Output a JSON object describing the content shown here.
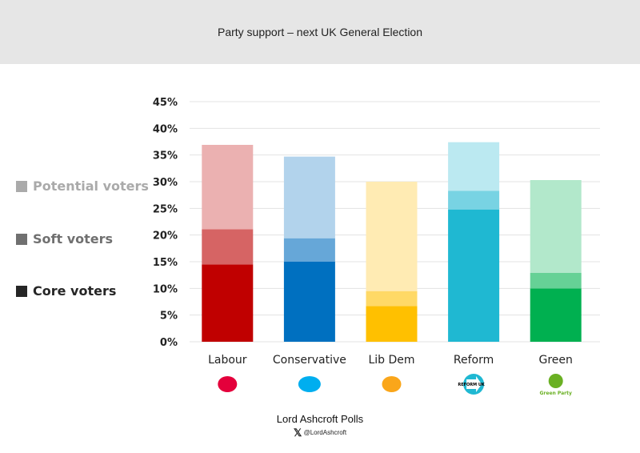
{
  "chart_data": {
    "type": "bar",
    "stacked": true,
    "title": "Party support – next UK General Election",
    "categories": [
      "Labour",
      "Conservative",
      "Lib Dem",
      "Reform",
      "Green"
    ],
    "series": [
      {
        "name": "Core voters",
        "values": [
          14.5,
          15.0,
          6.7,
          24.8,
          10.0
        ]
      },
      {
        "name": "Soft voters",
        "values": [
          6.6,
          4.4,
          2.8,
          3.5,
          2.9
        ]
      },
      {
        "name": "Potential voters",
        "values": [
          15.8,
          15.3,
          20.5,
          9.1,
          17.4
        ]
      }
    ],
    "cumulative_totals": {
      "core": [
        14.5,
        15.0,
        6.7,
        24.8,
        10.0
      ],
      "soft": [
        21.1,
        19.4,
        9.5,
        28.3,
        12.9
      ],
      "potential": [
        36.9,
        34.7,
        30.0,
        37.4,
        30.3
      ]
    },
    "ylim": [
      0,
      45
    ],
    "yticks": [
      "0%",
      "5%",
      "10%",
      "15%",
      "20%",
      "25%",
      "30%",
      "35%",
      "40%",
      "45%"
    ],
    "grid": true,
    "legend_placement": "left",
    "colors": {
      "Labour": [
        "#c00000",
        "#d66464",
        "#ebb1b1"
      ],
      "Conservative": [
        "#0070c0",
        "#66a7d8",
        "#b2d3ec"
      ],
      "Lib Dem": [
        "#ffc000",
        "#ffd966",
        "#ffebb3"
      ],
      "Reform": [
        "#1fb8d2",
        "#78d3e3",
        "#bbe9f1"
      ],
      "Green": [
        "#00b050",
        "#66d196",
        "#b2e8cb"
      ]
    }
  },
  "legend": [
    {
      "label": "Potential voters",
      "color": "#aaaaaa"
    },
    {
      "label": "Soft voters",
      "color": "#707070"
    },
    {
      "label": "Core voters",
      "color": "#262626"
    }
  ],
  "footer": {
    "brand": "Lord Ashcroft Polls",
    "handle": "@LordAshcroft"
  },
  "logos": {
    "Green": "Green Party",
    "Reform": "REFORM UK"
  }
}
